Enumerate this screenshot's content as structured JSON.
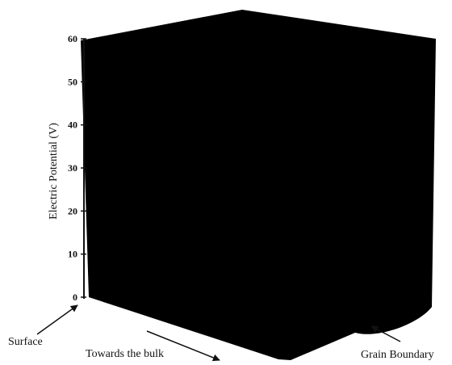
{
  "chart_data": {
    "type": "surface",
    "title": "",
    "zlabel": "Electric Potential (V)",
    "z_ticks": [
      "0",
      "10",
      "20",
      "30",
      "40",
      "50",
      "60"
    ],
    "zlim": [
      0,
      60
    ],
    "annotations": {
      "surface": "Surface",
      "towards_bulk": "Towards the bulk",
      "grain_boundary": "Grain Boundary"
    },
    "surface_color": "#000000",
    "grid": false
  }
}
